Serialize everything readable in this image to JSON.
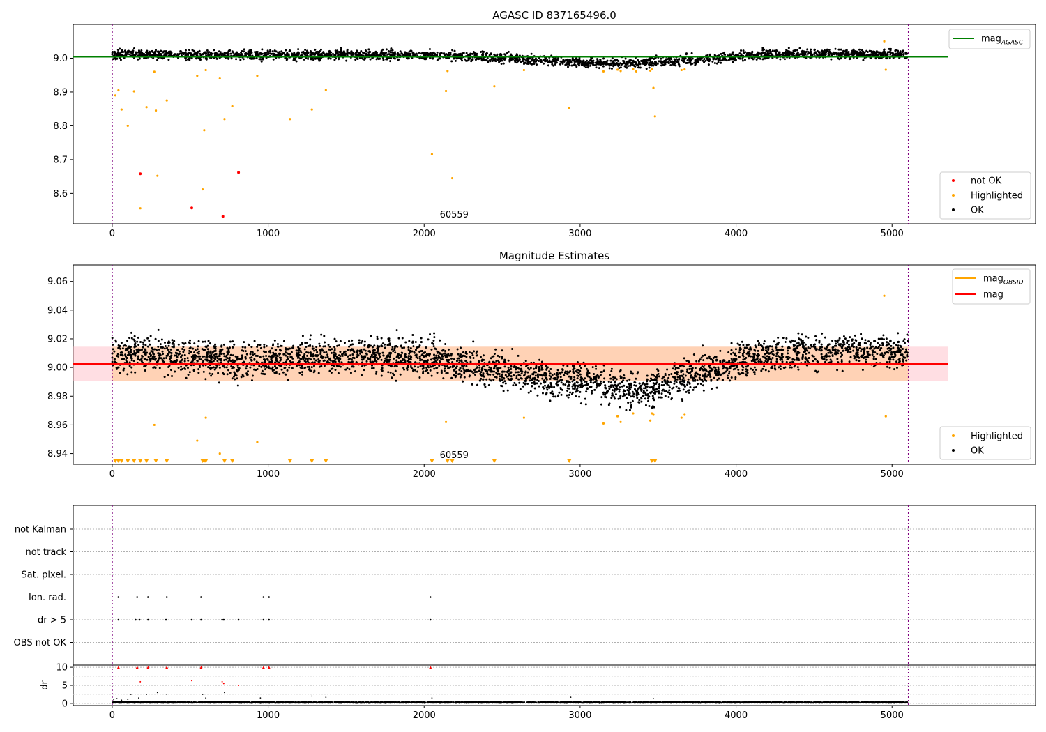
{
  "figure": {
    "sup_title": "AGASC ID 837165496.0"
  },
  "chart_data": [
    {
      "type": "scatter",
      "title": "AGASC ID 837165496.0",
      "xlim": [
        -250,
        5920
      ],
      "ylim": [
        8.51,
        9.1
      ],
      "x_ticks": [
        0,
        1000,
        2000,
        3000,
        4000,
        5000
      ],
      "x_tick_labels": [
        "0",
        "1000",
        "2000",
        "3000",
        "4000",
        "5000"
      ],
      "y_ticks": [
        8.6,
        8.7,
        8.8,
        8.9,
        9.0
      ],
      "y_tick_labels": [
        "8.6",
        "8.7",
        "8.8",
        "8.9",
        "9.0"
      ],
      "obsid_boundaries": [
        0,
        5105
      ],
      "obsid_label": {
        "text": "60559",
        "x": 2550
      },
      "lines": [
        {
          "name": "mag_AGASC",
          "label_main": "mag",
          "label_sub": "AGASC",
          "color": "#008000",
          "y": 9.004,
          "x": [
            -250,
            5360
          ]
        }
      ],
      "series": [
        {
          "name": "not OK",
          "color": "#ff0000",
          "points": [
            [
              180,
              8.658
            ],
            [
              510,
              8.557
            ],
            [
              710,
              8.532
            ],
            [
              810,
              8.662
            ]
          ]
        },
        {
          "name": "Highlighted",
          "color": "#ffa500",
          "points": [
            [
              20,
              8.89
            ],
            [
              40,
              8.905
            ],
            [
              60,
              8.848
            ],
            [
              100,
              8.8
            ],
            [
              140,
              8.902
            ],
            [
              180,
              8.556
            ],
            [
              220,
              8.855
            ],
            [
              270,
              8.96
            ],
            [
              280,
              8.845
            ],
            [
              290,
              8.652
            ],
            [
              350,
              8.875
            ],
            [
              545,
              8.948
            ],
            [
              580,
              8.612
            ],
            [
              590,
              8.787
            ],
            [
              600,
              8.965
            ],
            [
              690,
              8.94
            ],
            [
              720,
              8.82
            ],
            [
              770,
              8.858
            ],
            [
              930,
              8.948
            ],
            [
              1140,
              8.82
            ],
            [
              1280,
              8.848
            ],
            [
              1370,
              8.906
            ],
            [
              2050,
              8.716
            ],
            [
              2140,
              8.903
            ],
            [
              2150,
              8.962
            ],
            [
              2180,
              8.645
            ],
            [
              2450,
              8.917
            ],
            [
              2640,
              8.965
            ],
            [
              2930,
              8.853
            ],
            [
              3150,
              8.961
            ],
            [
              3240,
              8.966
            ],
            [
              3260,
              8.962
            ],
            [
              3340,
              8.968
            ],
            [
              3360,
              8.961
            ],
            [
              3450,
              8.963
            ],
            [
              3460,
              8.968
            ],
            [
              3470,
              8.912
            ],
            [
              3480,
              8.828
            ],
            [
              3650,
              8.965
            ],
            [
              3670,
              8.967
            ],
            [
              4950,
              9.05
            ],
            [
              4960,
              8.966
            ]
          ]
        },
        {
          "name": "OK",
          "color": "#000000",
          "generated": "trend",
          "n": 2600,
          "trend": [
            [
              0,
              9.012
            ],
            [
              800,
              9.008
            ],
            [
              1500,
              9.01
            ],
            [
              2000,
              9.01
            ],
            [
              2500,
              9.0
            ],
            [
              3000,
              8.988
            ],
            [
              3300,
              8.984
            ],
            [
              3500,
              8.988
            ],
            [
              3800,
              8.998
            ],
            [
              4200,
              9.012
            ],
            [
              4600,
              9.014
            ],
            [
              5100,
              9.01
            ]
          ],
          "spread": 0.014
        }
      ],
      "legends": [
        {
          "position": "upper-right",
          "entries": [
            "mag_AGASC"
          ]
        },
        {
          "position": "lower-right",
          "entries": [
            "not OK",
            "Highlighted",
            "OK"
          ]
        }
      ]
    },
    {
      "type": "scatter",
      "title": "Magnitude Estimates",
      "xlim": [
        -250,
        5920
      ],
      "ylim": [
        8.9325,
        9.0715
      ],
      "x_ticks": [
        0,
        1000,
        2000,
        3000,
        4000,
        5000
      ],
      "x_tick_labels": [
        "0",
        "1000",
        "2000",
        "3000",
        "4000",
        "5000"
      ],
      "y_ticks": [
        8.94,
        8.96,
        8.98,
        9.0,
        9.02,
        9.04,
        9.06
      ],
      "y_tick_labels": [
        "8.94",
        "8.96",
        "8.98",
        "9.00",
        "9.02",
        "9.04",
        "9.06"
      ],
      "obsid_boundaries": [
        0,
        5105
      ],
      "obsid_label": {
        "text": "60559",
        "x": 2550
      },
      "bands": [
        {
          "name": "mag band",
          "color": "#ffb6c1",
          "opacity": 0.45,
          "y0": 8.9905,
          "y1": 9.0145,
          "x": [
            -250,
            5360
          ]
        },
        {
          "name": "mag_OBSID band",
          "color": "#ffa500",
          "opacity": 0.2,
          "y0": 8.9905,
          "y1": 9.0145,
          "x": [
            0,
            5105
          ]
        }
      ],
      "lines": [
        {
          "name": "mag_OBSID",
          "label_main": "mag",
          "label_sub": "OBSID",
          "color": "#ffa500",
          "y": 9.002,
          "x": [
            0,
            5105
          ]
        },
        {
          "name": "mag",
          "label_main": "mag",
          "label_sub": "",
          "color": "#ff0000",
          "y": 9.0025,
          "x": [
            -250,
            5360
          ]
        }
      ],
      "series": [
        {
          "name": "Highlighted",
          "color": "#ffa500",
          "points": [
            [
              270,
              8.96
            ],
            [
              545,
              8.949
            ],
            [
              600,
              8.965
            ],
            [
              690,
              8.94
            ],
            [
              930,
              8.948
            ],
            [
              2140,
              8.962
            ],
            [
              2640,
              8.965
            ],
            [
              3150,
              8.961
            ],
            [
              3240,
              8.966
            ],
            [
              3260,
              8.962
            ],
            [
              3340,
              8.968
            ],
            [
              3450,
              8.963
            ],
            [
              3460,
              8.968
            ],
            [
              3470,
              8.967
            ],
            [
              3650,
              8.965
            ],
            [
              3670,
              8.967
            ],
            [
              4950,
              9.05
            ],
            [
              4960,
              8.966
            ]
          ]
        },
        {
          "name": "Highlighted (below axis)",
          "color": "#ffa500",
          "marker": "triangle-down",
          "points": [
            [
              20
            ],
            [
              40
            ],
            [
              60
            ],
            [
              100
            ],
            [
              140
            ],
            [
              180
            ],
            [
              220
            ],
            [
              280
            ],
            [
              350
            ],
            [
              580
            ],
            [
              590
            ],
            [
              600
            ],
            [
              720
            ],
            [
              770
            ],
            [
              1140
            ],
            [
              1280
            ],
            [
              1370
            ],
            [
              2050
            ],
            [
              2150
            ],
            [
              2180
            ],
            [
              2450
            ],
            [
              2930
            ],
            [
              3460
            ],
            [
              3480
            ]
          ]
        },
        {
          "name": "OK",
          "color": "#000000",
          "generated": "trend",
          "n": 3400,
          "trend": [
            [
              0,
              9.01
            ],
            [
              400,
              9.008
            ],
            [
              800,
              9.004
            ],
            [
              1300,
              9.008
            ],
            [
              1800,
              9.008
            ],
            [
              2000,
              9.008
            ],
            [
              2400,
              9.0
            ],
            [
              2800,
              8.992
            ],
            [
              3100,
              8.99
            ],
            [
              3300,
              8.983
            ],
            [
              3450,
              8.986
            ],
            [
              3700,
              8.994
            ],
            [
              4000,
              9.004
            ],
            [
              4300,
              9.01
            ],
            [
              4700,
              9.012
            ],
            [
              5100,
              9.01
            ]
          ],
          "spread": 0.012
        }
      ],
      "legends": [
        {
          "position": "upper-right",
          "entries": [
            "mag_OBSID",
            "mag"
          ]
        },
        {
          "position": "lower-right",
          "entries": [
            "Highlighted",
            "OK"
          ]
        }
      ]
    },
    {
      "type": "scatter",
      "title": "",
      "xlim": [
        -250,
        5920
      ],
      "flag_rows": [
        "not Kalman",
        "not track",
        "Sat. pixel.",
        "Ion. rad.",
        "dr > 5",
        "OBS not OK"
      ],
      "obsid_boundaries": [
        0,
        5105
      ],
      "flag_points": [
        {
          "row": "Ion. rad.",
          "x": [
            40,
            160,
            230,
            350,
            570,
            970,
            1005,
            2040
          ]
        },
        {
          "row": "dr > 5",
          "x": [
            40,
            150,
            175,
            230,
            345,
            510,
            570,
            705,
            715,
            810,
            970,
            1005,
            2040
          ]
        }
      ]
    },
    {
      "type": "scatter",
      "title": "",
      "ylabel": "dr",
      "xlim": [
        -250,
        5920
      ],
      "ylim": [
        -0.6,
        10.6
      ],
      "y_ticks": [
        0,
        5,
        10
      ],
      "y_tick_labels": [
        "0",
        "5",
        "10"
      ],
      "x_ticks": [
        0,
        1000,
        2000,
        3000,
        4000,
        5000
      ],
      "x_tick_labels": [
        "0",
        "1000",
        "2000",
        "3000",
        "4000",
        "5000"
      ],
      "obsid_boundaries": [
        0,
        5105
      ],
      "series": [
        {
          "name": "dr > 5 (red)",
          "color": "#ff0000",
          "points": [
            [
              40,
              10
            ],
            [
              160,
              10
            ],
            [
              230,
              10
            ],
            [
              350,
              10
            ],
            [
              570,
              10
            ],
            [
              970,
              10
            ],
            [
              1005,
              10
            ],
            [
              2040,
              10
            ],
            [
              180,
              6
            ],
            [
              510,
              6.3
            ],
            [
              705,
              6
            ],
            [
              715,
              5.5
            ],
            [
              810,
              5
            ]
          ]
        },
        {
          "name": "dr",
          "color": "#000000",
          "generated": "trend",
          "n": 2600,
          "trend": [
            [
              0,
              0.3
            ],
            [
              5100,
              0.3
            ]
          ],
          "spread": 0.15
        },
        {
          "name": "dr outliers",
          "color": "#000000",
          "points": [
            [
              10,
              1
            ],
            [
              30,
              1.3
            ],
            [
              60,
              0.9
            ],
            [
              100,
              1.1
            ],
            [
              120,
              2.5
            ],
            [
              170,
              1.5
            ],
            [
              220,
              2.5
            ],
            [
              290,
              3
            ],
            [
              350,
              2.5
            ],
            [
              580,
              2.5
            ],
            [
              600,
              1.5
            ],
            [
              720,
              3
            ],
            [
              950,
              1.5
            ],
            [
              1280,
              2
            ],
            [
              1370,
              1.7
            ],
            [
              2050,
              1.5
            ],
            [
              2940,
              1.7
            ],
            [
              3470,
              1.3
            ]
          ]
        }
      ]
    }
  ]
}
